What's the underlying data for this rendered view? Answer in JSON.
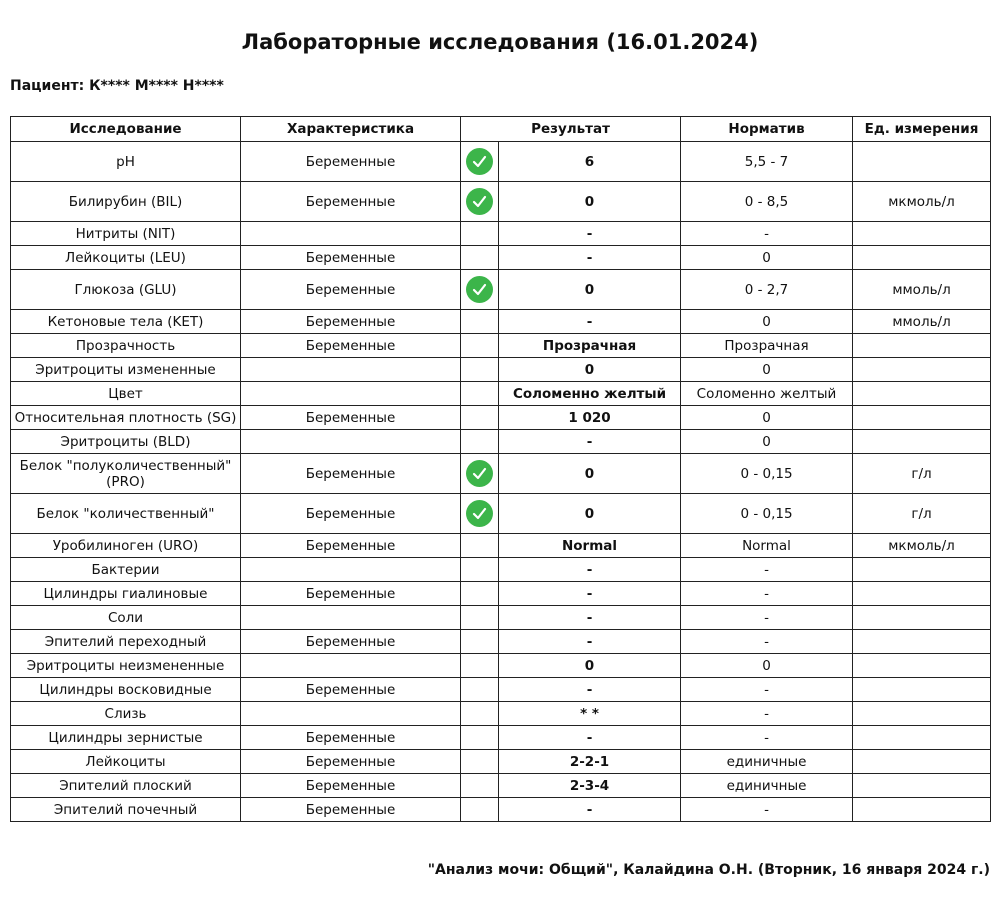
{
  "title": "Лабораторные исследования (16.01.2024)",
  "patient": "Пациент: К**** М**** Н****",
  "columns": [
    "Исследование",
    "Характеристика",
    "Результат",
    "Норматив",
    "Ед. измерения"
  ],
  "colors": {
    "check": "#3cb54a"
  },
  "rows": [
    {
      "name": "pH",
      "char": "Беременные",
      "ok": true,
      "result": "6",
      "norm": "5,5 - 7",
      "unit": ""
    },
    {
      "name": "Билирубин (BIL)",
      "char": "Беременные",
      "ok": true,
      "result": "0",
      "norm": "0 - 8,5",
      "unit": "мкмоль/л"
    },
    {
      "name": "Нитриты (NIT)",
      "char": "",
      "ok": false,
      "result": "-",
      "norm": "-",
      "unit": ""
    },
    {
      "name": "Лейкоциты (LEU)",
      "char": "Беременные",
      "ok": false,
      "result": "-",
      "norm": "0",
      "unit": ""
    },
    {
      "name": "Глюкоза (GLU)",
      "char": "Беременные",
      "ok": true,
      "result": "0",
      "norm": "0 - 2,7",
      "unit": "ммоль/л"
    },
    {
      "name": "Кетоновые тела (KET)",
      "char": "Беременные",
      "ok": false,
      "result": "-",
      "norm": "0",
      "unit": "ммоль/л"
    },
    {
      "name": "Прозрачность",
      "char": "Беременные",
      "ok": false,
      "result": "Прозрачная",
      "norm": "Прозрачная",
      "unit": ""
    },
    {
      "name": "Эритроциты измененные",
      "char": "",
      "ok": false,
      "result": "0",
      "norm": "0",
      "unit": ""
    },
    {
      "name": "Цвет",
      "char": "",
      "ok": false,
      "result": "Соломенно желтый",
      "norm": "Соломенно желтый",
      "unit": ""
    },
    {
      "name": "Относительная плотность (SG)",
      "char": "Беременные",
      "ok": false,
      "result": "1 020",
      "norm": "0",
      "unit": ""
    },
    {
      "name": "Эритроциты (BLD)",
      "char": "",
      "ok": false,
      "result": "-",
      "norm": "0",
      "unit": ""
    },
    {
      "name": "Белок \"полуколичественный\" (PRO)",
      "char": "Беременные",
      "ok": true,
      "result": "0",
      "norm": "0 - 0,15",
      "unit": "г/л"
    },
    {
      "name": "Белок \"количественный\"",
      "char": "Беременные",
      "ok": true,
      "result": "0",
      "norm": "0 - 0,15",
      "unit": "г/л"
    },
    {
      "name": "Уробилиноген (URO)",
      "char": "Беременные",
      "ok": false,
      "result": "Normal",
      "norm": "Normal",
      "unit": "мкмоль/л"
    },
    {
      "name": "Бактерии",
      "char": "",
      "ok": false,
      "result": "-",
      "norm": "-",
      "unit": ""
    },
    {
      "name": "Цилиндры гиалиновые",
      "char": "Беременные",
      "ok": false,
      "result": "-",
      "norm": "-",
      "unit": ""
    },
    {
      "name": "Соли",
      "char": "",
      "ok": false,
      "result": "-",
      "norm": "-",
      "unit": ""
    },
    {
      "name": "Эпителий переходный",
      "char": "Беременные",
      "ok": false,
      "result": "-",
      "norm": "-",
      "unit": ""
    },
    {
      "name": "Эритроциты неизмененные",
      "char": "",
      "ok": false,
      "result": "0",
      "norm": "0",
      "unit": ""
    },
    {
      "name": "Цилиндры восковидные",
      "char": "Беременные",
      "ok": false,
      "result": "-",
      "norm": "-",
      "unit": ""
    },
    {
      "name": "Слизь",
      "char": "",
      "ok": false,
      "result": "* *",
      "norm": "-",
      "unit": ""
    },
    {
      "name": "Цилиндры зернистые",
      "char": "Беременные",
      "ok": false,
      "result": "-",
      "norm": "-",
      "unit": ""
    },
    {
      "name": "Лейкоциты",
      "char": "Беременные",
      "ok": false,
      "result": "2-2-1",
      "norm": "единичные",
      "unit": ""
    },
    {
      "name": "Эпителий плоский",
      "char": "Беременные",
      "ok": false,
      "result": "2-3-4",
      "norm": "единичные",
      "unit": ""
    },
    {
      "name": "Эпителий почечный",
      "char": "Беременные",
      "ok": false,
      "result": "-",
      "norm": "-",
      "unit": ""
    }
  ],
  "footer": "\"Анализ мочи: Общий\", Калайдина О.Н. (Вторник, 16 января 2024 г.)"
}
